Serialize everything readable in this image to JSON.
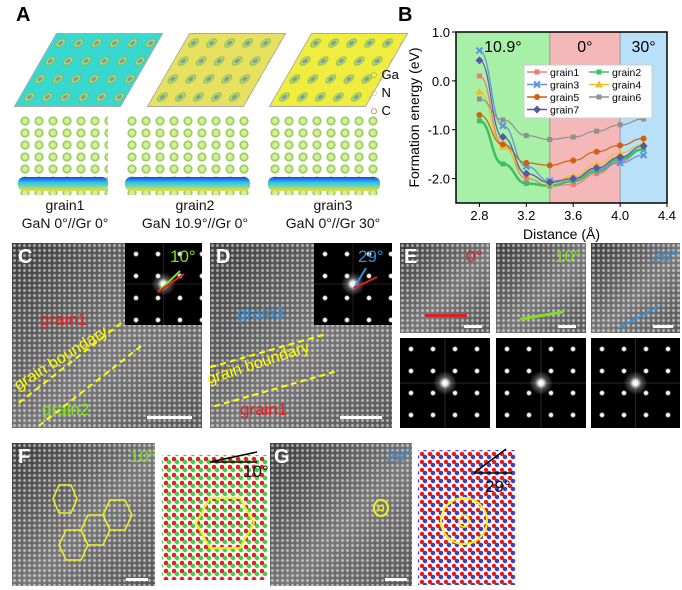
{
  "panel_labels": {
    "a": "A",
    "b": "B",
    "c": "C",
    "d": "D",
    "e": "E",
    "f": "F",
    "g": "G"
  },
  "panel_a": {
    "grains": [
      {
        "name": "grain1",
        "orientation": "GaN 0°//Gr 0°"
      },
      {
        "name": "grain2",
        "orientation": "GaN 10.9°//Gr 0°"
      },
      {
        "name": "grain3",
        "orientation": "GaN 0°//Gr 30°"
      }
    ],
    "legend": [
      "Ga",
      "N",
      "C"
    ],
    "legend_colors": [
      "#7cc444",
      "#bbbbbb",
      "#b05020"
    ]
  },
  "chart_data": {
    "type": "line",
    "title": "",
    "xlabel": "Distance (Å)",
    "ylabel": "Formation energy (eV)",
    "xlim": [
      2.6,
      4.4
    ],
    "ylim": [
      -2.5,
      1.0
    ],
    "xticks": [
      "2.8",
      "3.2",
      "3.6",
      "4.0",
      "4.4"
    ],
    "yticks": [
      "1.0",
      "0.0",
      "-1.0",
      "-2.0"
    ],
    "regions": [
      {
        "label": "10.9°",
        "from": 2.6,
        "to": 3.4,
        "color": "#a8f0a8"
      },
      {
        "label": "0°",
        "from": 3.4,
        "to": 4.0,
        "color": "#f4b8b8"
      },
      {
        "label": "30°",
        "from": 4.0,
        "to": 4.4,
        "color": "#b8e0f8"
      }
    ],
    "legend_position": "top-right",
    "x": [
      2.8,
      3.0,
      3.2,
      3.4,
      3.6,
      3.8,
      4.0,
      4.2
    ],
    "series": [
      {
        "name": "grain1",
        "color": "#f07878",
        "marker": "square",
        "values": [
          0.1,
          -1.3,
          -2.0,
          -2.15,
          -2.12,
          -1.9,
          -1.65,
          -1.4
        ]
      },
      {
        "name": "grain2",
        "color": "#3cc060",
        "marker": "square",
        "values": [
          -0.82,
          -1.7,
          -2.1,
          -2.15,
          -2.05,
          -1.85,
          -1.6,
          -1.4
        ]
      },
      {
        "name": "grain3",
        "color": "#6090e0",
        "marker": "x",
        "values": [
          0.62,
          -0.92,
          -1.75,
          -2.05,
          -2.0,
          -1.8,
          -1.68,
          -1.52
        ]
      },
      {
        "name": "grain4",
        "color": "#f0c020",
        "marker": "triangle",
        "values": [
          -0.22,
          -1.35,
          -1.9,
          -2.1,
          -1.95,
          -1.7,
          -1.48,
          -1.3
        ]
      },
      {
        "name": "grain5",
        "color": "#d06010",
        "marker": "circle",
        "values": [
          -0.7,
          -1.3,
          -1.68,
          -1.73,
          -1.63,
          -1.45,
          -1.32,
          -1.18
        ]
      },
      {
        "name": "grain6",
        "color": "#909090",
        "marker": "square",
        "values": [
          -0.37,
          -0.8,
          -1.12,
          -1.2,
          -1.15,
          -1.03,
          -0.9,
          -0.78
        ]
      },
      {
        "name": "grain7",
        "color": "#5858a0",
        "marker": "diamond",
        "values": [
          0.42,
          -1.15,
          -1.9,
          -2.08,
          -2.0,
          -1.78,
          -1.56,
          -1.33
        ]
      }
    ]
  },
  "panel_c": {
    "angle": "10°",
    "grain_top": "grain1",
    "grain_bottom": "grain2",
    "boundary": "grain boundary"
  },
  "panel_d": {
    "angle": "29°",
    "grain_top": "grain3",
    "grain_bottom": "grain1",
    "boundary": "grain boundary"
  },
  "panel_e": {
    "angles": [
      "0°",
      "10°",
      "29°"
    ],
    "angle_colors": [
      "#e02020",
      "#80e020",
      "#3090e0"
    ]
  },
  "panel_f": {
    "image_angle": "10°",
    "model_angle": "10°"
  },
  "panel_g": {
    "image_angle": "29°",
    "model_angle": "29°"
  },
  "colors": {
    "red": "#e02020",
    "green": "#80e020",
    "blue": "#3090e0",
    "yellow": "#f0f020"
  }
}
